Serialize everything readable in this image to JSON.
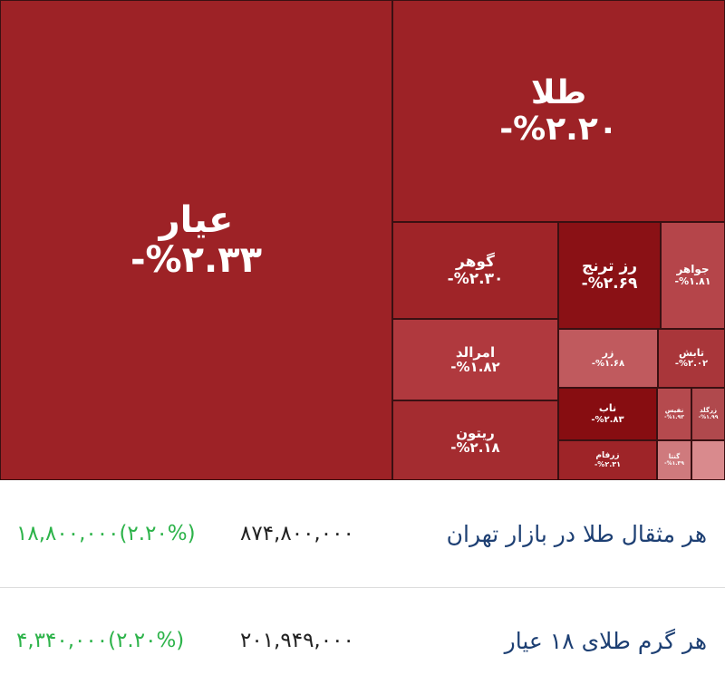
{
  "treemap": {
    "tiles": [
      {
        "name": "عیار",
        "change": "-%۲.۳۳",
        "color": "#9d2226"
      },
      {
        "name": "طلا",
        "change": "-%۲.۲۰",
        "color": "#9d2226"
      },
      {
        "name": "گوهر",
        "change": "-%۲.۳۰",
        "color": "#9f2428"
      },
      {
        "name": "رز ترنج",
        "change": "-%۲.۶۹",
        "color": "#8a1115"
      },
      {
        "name": "جواهر",
        "change": "-%۱.۸۱",
        "color": "#b5454a"
      },
      {
        "name": "امرالد",
        "change": "-%۱.۸۲",
        "color": "#b0393e"
      },
      {
        "name": "زر",
        "change": "-%۱.۶۸",
        "color": "#c05a5e"
      },
      {
        "name": "تابش",
        "change": "-%۲.۰۲",
        "color": "#a9363a"
      },
      {
        "name": "ریتون",
        "change": "-%۲.۱۸",
        "color": "#a42c30"
      },
      {
        "name": "ناب",
        "change": "-%۲.۸۳",
        "color": "#870d11"
      },
      {
        "name": "زرفام",
        "change": "-%۲.۳۱",
        "color": "#9e2428"
      },
      {
        "name": "نفیس",
        "change": "-%۱.۹۳",
        "color": "#b54a4e"
      },
      {
        "name": "زرگلد",
        "change": "-%۱.۹۹",
        "color": "#b0494d"
      },
      {
        "name": "گنتا",
        "change": "-%۱.۳۹",
        "color": "#cf7a7d"
      }
    ]
  },
  "table": {
    "rows": [
      {
        "label": "هر مثقال طلا در بازار تهران",
        "price": "۸۷۴,۸۰۰,۰۰۰",
        "change": "۱۸,۸۰۰,۰۰۰(۲.۲۰%)"
      },
      {
        "label": "هر گرم طلای ۱۸ عیار",
        "price": "۲۰۱,۹۴۹,۰۰۰",
        "change": "۴,۳۴۰,۰۰۰(۲.۲۰%)"
      }
    ]
  }
}
